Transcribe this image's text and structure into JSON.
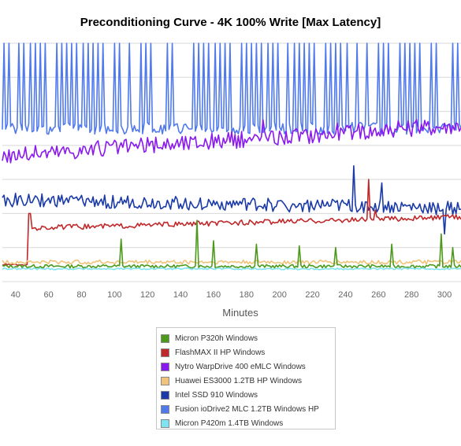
{
  "chart_data": {
    "type": "line",
    "title": "Preconditioning Curve - 4K 100% Write [Max Latency]",
    "xlabel": "Minutes",
    "ylabel": "",
    "xlim": [
      32,
      310
    ],
    "x_ticks": [
      40,
      60,
      80,
      100,
      120,
      140,
      160,
      180,
      200,
      220,
      240,
      260,
      280,
      300
    ],
    "grid": true,
    "legend": "bottom-center",
    "series": [
      {
        "name": "Micron P320h Windows",
        "color": "#4c9a1c",
        "base": 0.9,
        "noise": 0.1,
        "spikes": [
          [
            104,
            2.5
          ],
          [
            150,
            3.6
          ],
          [
            160,
            2.4
          ],
          [
            186,
            2.2
          ],
          [
            212,
            2.1
          ],
          [
            234,
            2.0
          ],
          [
            268,
            2.2
          ],
          [
            298,
            2.8
          ],
          [
            305,
            2.0
          ]
        ]
      },
      {
        "name": "FlashMAX II HP Windows",
        "color": "#c0282a",
        "base": 3.1,
        "noise": 0.15,
        "trend": 0.7,
        "start": [
          [
            32,
            1.0
          ],
          [
            48,
            1.0
          ],
          [
            50,
            4.0
          ]
        ],
        "spikes": [
          [
            254,
            6.0
          ],
          [
            258,
            4.2
          ]
        ]
      },
      {
        "name": "Nytro WarpDrive 400 eMLC Windows",
        "color": "#8a19ef",
        "base": 7.4,
        "noise": 0.5,
        "trend": 1.8,
        "spikes": [
          [
            190,
            9.5
          ],
          [
            235,
            9.3
          ],
          [
            300,
            9.3
          ]
        ]
      },
      {
        "name": "Huawei ES3000 1.2TB HP Windows",
        "color": "#f0c27a",
        "base": 1.15,
        "noise": 0.12,
        "spikes": []
      },
      {
        "name": "Intel SSD 910 Windows",
        "color": "#1a3aa8",
        "base": 4.8,
        "noise": 0.4,
        "trend": -0.5,
        "spikes": [
          [
            245,
            6.8
          ],
          [
            262,
            5.8
          ],
          [
            300,
            2.8
          ]
        ]
      },
      {
        "name": "Fusion ioDrive2 MLC 1.2TB Windows HP",
        "color": "#5079ec",
        "base": 9.0,
        "noise": 0.35,
        "spikes": [],
        "spike_to": 14.5,
        "spike_every": 3.2
      },
      {
        "name": "Micron P420m 1.4TB Windows",
        "color": "#80e4f0",
        "base": 0.75,
        "noise": 0.05,
        "spikes": []
      }
    ],
    "y_range": [
      0,
      14
    ]
  }
}
